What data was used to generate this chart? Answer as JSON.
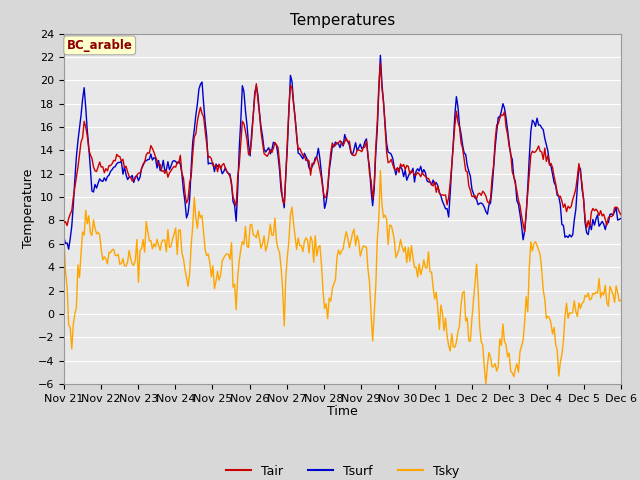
{
  "title": "Temperatures",
  "xlabel": "Time",
  "ylabel": "Temperature",
  "legend_label": "BC_arable",
  "line_labels": [
    "Tair",
    "Tsurf",
    "Tsky"
  ],
  "line_colors": [
    "#cc0000",
    "#0000cc",
    "#ffa500"
  ],
  "ylim": [
    -6,
    24
  ],
  "yticks": [
    -6,
    -4,
    -2,
    0,
    2,
    4,
    6,
    8,
    10,
    12,
    14,
    16,
    18,
    20,
    22,
    24
  ],
  "xtick_labels": [
    "Nov 21",
    "Nov 22",
    "Nov 23",
    "Nov 24",
    "Nov 25",
    "Nov 26",
    "Nov 27",
    "Nov 28",
    "Nov 29",
    "Nov 30",
    "Dec 1",
    "Dec 2",
    "Dec 3",
    "Dec 4",
    "Dec 5",
    "Dec 6"
  ],
  "background_color": "#d8d8d8",
  "plot_bg_color": "#e8e8e8",
  "grid_color": "#ffffff",
  "annotation_bg": "#ffffcc",
  "annotation_text_color": "#8b0000",
  "annotation_edge_color": "#aaaaaa",
  "title_fontsize": 11,
  "axis_label_fontsize": 9,
  "tick_fontsize": 8,
  "legend_fontsize": 9,
  "linewidth": 1.0
}
